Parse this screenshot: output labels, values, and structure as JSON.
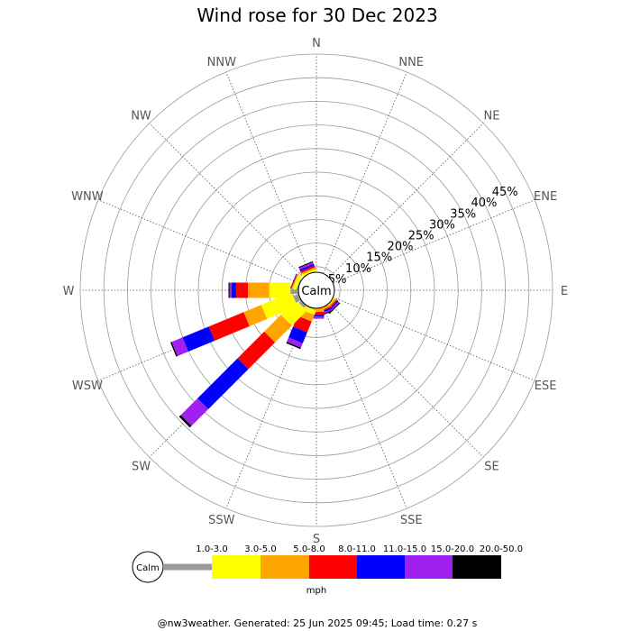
{
  "chart_data": {
    "type": "windrose",
    "title": "Wind rose for 30 Dec 2023",
    "center_label": "Calm",
    "directions": [
      "N",
      "NNE",
      "NE",
      "ENE",
      "E",
      "ESE",
      "SE",
      "SSE",
      "S",
      "SSW",
      "SW",
      "WSW",
      "W",
      "WNW",
      "NW",
      "NNW"
    ],
    "radial_ticks": [
      "5%",
      "10%",
      "15%",
      "20%",
      "25%",
      "30%",
      "35%",
      "40%",
      "45%"
    ],
    "radial_max": 50,
    "speed_bins": [
      "1.0-3.0",
      "3.0-5.0",
      "5.0-8.0",
      "8.0-11.0",
      "11.0-15.0",
      "15.0-20.0",
      "20.0-50.0"
    ],
    "speed_unit": "mph",
    "colors": [
      "#999999",
      "#ffff00",
      "#ffa500",
      "#ff0000",
      "#0000ff",
      "#a020f0",
      "#000000"
    ],
    "series": [
      {
        "direction": "NNW",
        "cumulative": [
          3.5,
          4.2,
          4.6,
          5.0,
          5.4,
          5.8,
          6.0
        ]
      },
      {
        "direction": "N",
        "cumulative": [
          3.0,
          3.6,
          3.6,
          3.6,
          3.6,
          3.6,
          3.6
        ]
      },
      {
        "direction": "SE",
        "cumulative": [
          3.5,
          4.0,
          4.4,
          4.7,
          5.0,
          5.3,
          5.5
        ]
      },
      {
        "direction": "SSE",
        "cumulative": [
          3.0,
          3.8,
          4.3,
          4.6,
          4.9,
          5.2,
          5.4
        ]
      },
      {
        "direction": "S",
        "cumulative": [
          3.0,
          3.8,
          4.6,
          5.2,
          5.6,
          5.9,
          6.0
        ]
      },
      {
        "direction": "SSW",
        "cumulative": [
          4.0,
          5.0,
          6.5,
          9.0,
          11.5,
          12.5,
          12.8
        ]
      },
      {
        "direction": "SW",
        "cumulative": [
          4.5,
          9.0,
          14.0,
          22.0,
          34.0,
          39.0,
          39.5
        ]
      },
      {
        "direction": "WSW",
        "cumulative": [
          5.0,
          12.0,
          16.0,
          24.0,
          30.0,
          32.5,
          32.8
        ]
      },
      {
        "direction": "W",
        "cumulative": [
          5.5,
          10.0,
          14.5,
          17.0,
          18.0,
          18.4,
          18.6
        ]
      },
      {
        "direction": "WNW",
        "cumulative": [
          4.0,
          4.8,
          5.0,
          5.2,
          5.3,
          5.3,
          5.3
        ]
      }
    ]
  },
  "footer": "@nw3weather. Generated: 25 Jun 2025 09:45; Load time: 0.27 s"
}
